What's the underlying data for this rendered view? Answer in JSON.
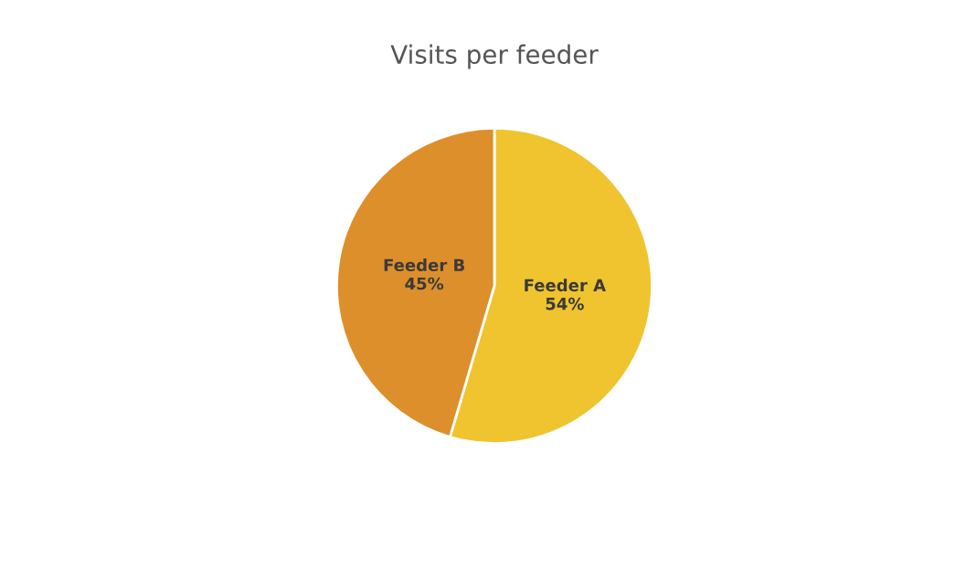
{
  "chart_data": {
    "type": "pie",
    "title": "Visits per feeder",
    "categories": [
      "Feeder A",
      "Feeder B"
    ],
    "values": [
      54,
      45
    ],
    "colors": [
      "#efc42e",
      "#dd8f2b"
    ],
    "value_labels": [
      "54%",
      "45%"
    ],
    "legend": false
  }
}
